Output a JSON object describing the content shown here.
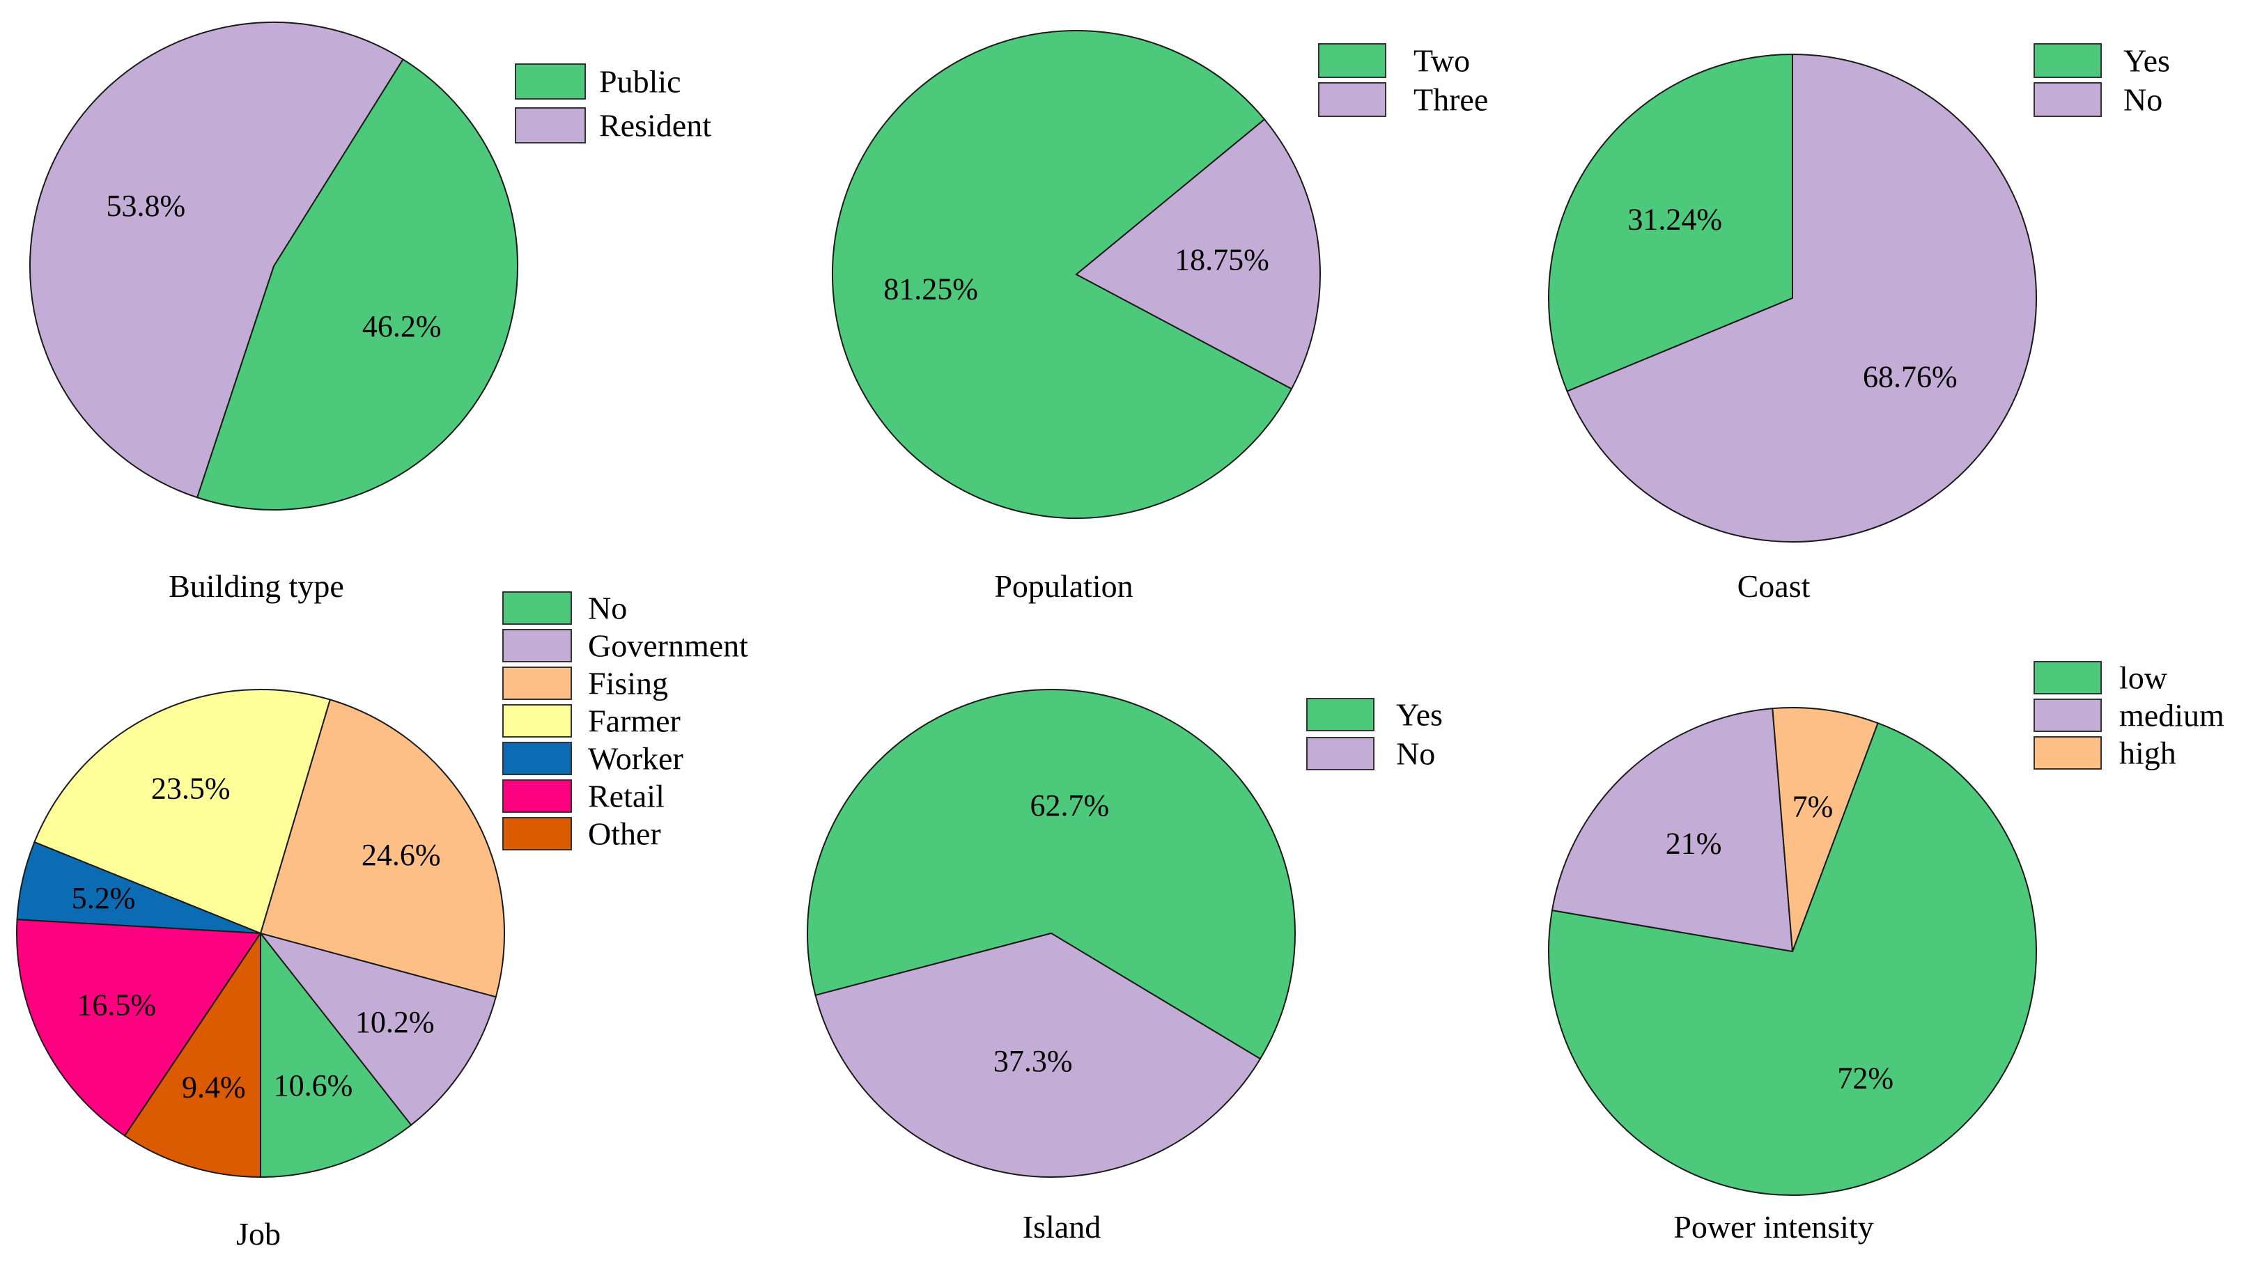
{
  "chart_data": [
    {
      "type": "pie",
      "title": "Building type",
      "labels": [
        "Public",
        "Resident"
      ],
      "values": [
        46.2,
        53.8
      ],
      "value_labels": [
        "46.2%",
        "53.8%"
      ],
      "colors": [
        "#4cc97a",
        "#c3add6"
      ],
      "legend": "top-right"
    },
    {
      "type": "pie",
      "title": "Population",
      "labels": [
        "Two",
        "Three"
      ],
      "values": [
        81.25,
        18.75
      ],
      "value_labels": [
        "81.25%",
        "18.75%"
      ],
      "colors": [
        "#4cc97a",
        "#c3add6"
      ],
      "legend": "top-right"
    },
    {
      "type": "pie",
      "title": "Coast",
      "labels": [
        "Yes",
        "No"
      ],
      "values": [
        31.24,
        68.76
      ],
      "value_labels": [
        "31.24%",
        "68.76%"
      ],
      "colors": [
        "#4cc97a",
        "#c3add6"
      ],
      "legend": "top-right"
    },
    {
      "type": "pie",
      "title": "Job",
      "labels": [
        "No",
        "Government",
        "Fising",
        "Farmer",
        "Worker",
        "Retail",
        "Other"
      ],
      "values": [
        10.6,
        10.2,
        24.6,
        23.5,
        5.2,
        16.5,
        9.4
      ],
      "value_labels": [
        "10.6%",
        "10.2%",
        "24.6%",
        "23.5%",
        "5.2%",
        "16.5%",
        "9.4%"
      ],
      "colors": [
        "#4cc97a",
        "#c3add6",
        "#fdbf85",
        "#ffff99",
        "#0b6cb4",
        "#ff0080",
        "#dc5a00"
      ],
      "legend": "top-right"
    },
    {
      "type": "pie",
      "title": "Island",
      "labels": [
        "Yes",
        "No"
      ],
      "values": [
        62.7,
        37.3
      ],
      "value_labels": [
        "62.7%",
        "37.3%"
      ],
      "colors": [
        "#4cc97a",
        "#c3add6"
      ],
      "legend": "top-right"
    },
    {
      "type": "pie",
      "title": "Power intensity",
      "labels": [
        "low",
        "medium",
        "high"
      ],
      "values": [
        72,
        21,
        7
      ],
      "value_labels": [
        "72%",
        "21%",
        "7%"
      ],
      "colors": [
        "#4cc97a",
        "#c3add6",
        "#fdbf85"
      ],
      "legend": "top-right"
    }
  ]
}
